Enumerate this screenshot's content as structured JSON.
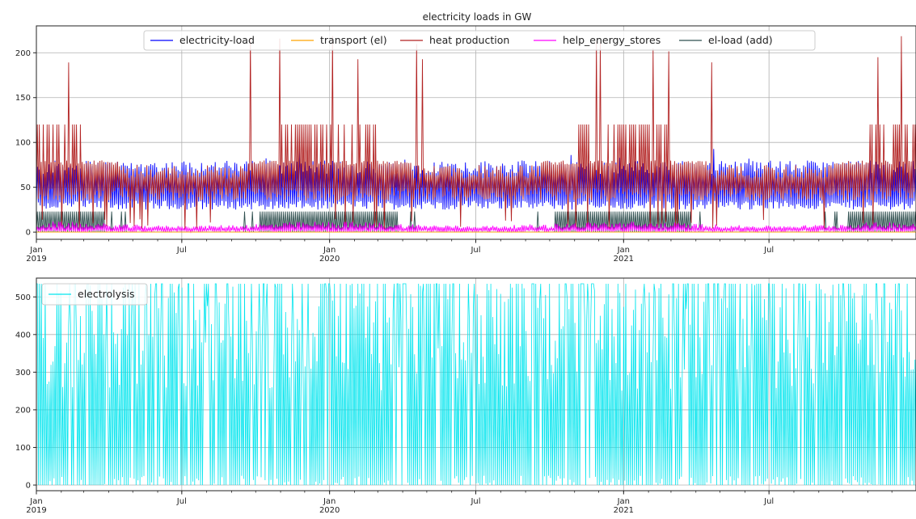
{
  "figure": {
    "title": "electricity loads in GW"
  },
  "chart_data": [
    {
      "type": "line",
      "title": "electricity loads in GW",
      "xlabel": "",
      "ylabel": "",
      "x_range": [
        "2019-01-01",
        "2021-12-31"
      ],
      "x_ticks": [
        {
          "date": "2019-01-01",
          "label": "Jan",
          "sublabel": "2019"
        },
        {
          "date": "2019-07-01",
          "label": "Jul",
          "sublabel": ""
        },
        {
          "date": "2020-01-01",
          "label": "Jan",
          "sublabel": "2020"
        },
        {
          "date": "2020-07-01",
          "label": "Jul",
          "sublabel": ""
        },
        {
          "date": "2021-01-01",
          "label": "Jan",
          "sublabel": "2021"
        },
        {
          "date": "2021-07-01",
          "label": "Jul",
          "sublabel": ""
        }
      ],
      "ylim": [
        -8,
        230
      ],
      "y_ticks": [
        0,
        50,
        100,
        150,
        200
      ],
      "grid": true,
      "legend": {
        "placement": "top-center",
        "columns": 5,
        "entries": [
          "electricity-load",
          "transport (el)",
          "heat production",
          "help_energy_stores",
          "el-load (add)"
        ]
      },
      "series": [
        {
          "name": "electricity-load",
          "color": "#0000ff",
          "min": 22,
          "max": 98,
          "typical_range": [
            25,
            75
          ]
        },
        {
          "name": "transport (el)",
          "color": "#ffa500",
          "min": 0,
          "max": 0
        },
        {
          "name": "heat production",
          "color": "#b22222",
          "min": 0,
          "max": 222,
          "plateau_levels": [
            120,
            80,
            50
          ]
        },
        {
          "name": "help_energy_stores",
          "color": "#ff00ff",
          "min": 0,
          "max": 12
        },
        {
          "name": "el-load (add)",
          "color": "#2f4f4f",
          "min": 0,
          "max": 25,
          "step_level": 23
        }
      ]
    },
    {
      "type": "line",
      "title": "",
      "xlabel": "",
      "ylabel": "",
      "x_range": [
        "2019-01-01",
        "2021-12-31"
      ],
      "x_ticks": [
        {
          "date": "2019-01-01",
          "label": "Jan",
          "sublabel": "2019"
        },
        {
          "date": "2019-07-01",
          "label": "Jul",
          "sublabel": ""
        },
        {
          "date": "2020-01-01",
          "label": "Jan",
          "sublabel": "2020"
        },
        {
          "date": "2020-07-01",
          "label": "Jul",
          "sublabel": ""
        },
        {
          "date": "2021-01-01",
          "label": "Jan",
          "sublabel": "2021"
        },
        {
          "date": "2021-07-01",
          "label": "Jul",
          "sublabel": ""
        }
      ],
      "ylim": [
        -15,
        550
      ],
      "y_ticks": [
        0,
        100,
        200,
        300,
        400,
        500
      ],
      "grid": true,
      "legend": {
        "placement": "top-left",
        "columns": 1,
        "entries": [
          "electrolysis"
        ]
      },
      "series": [
        {
          "name": "electrolysis",
          "color": "#00e5ee",
          "min": 0,
          "max": 535
        }
      ]
    }
  ]
}
